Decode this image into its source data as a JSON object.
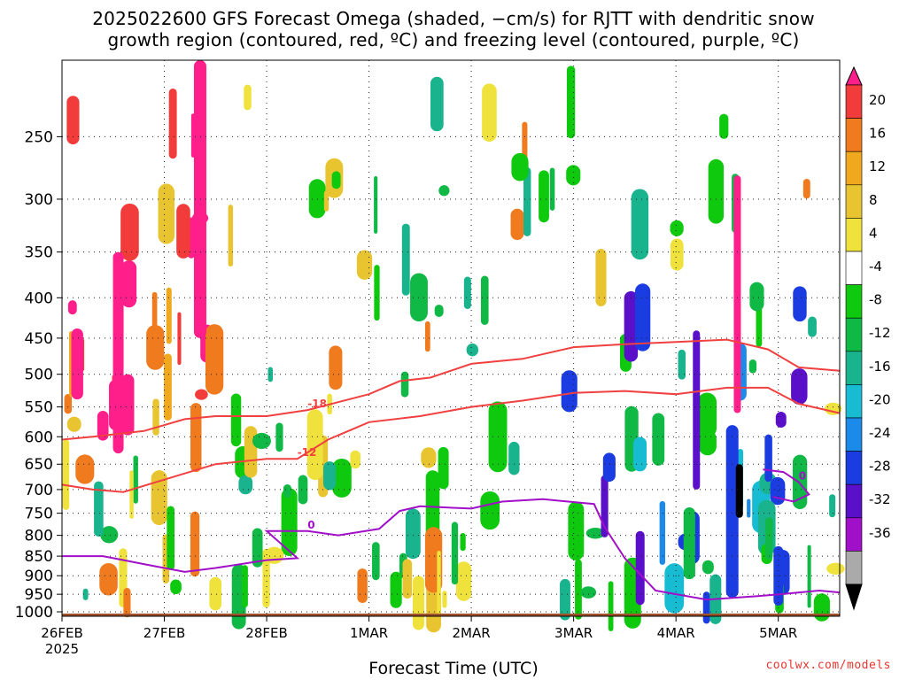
{
  "header": {
    "title_line1": "2025022600 GFS Forecast Omega (shaded, −cm/s) for RJTT with dendritic snow",
    "title_line2": "growth region (contoured, red, ºC) and freezing level (contoured, purple, ºC)"
  },
  "footer": {
    "credit": "coolwx.com/models"
  },
  "chart_data": {
    "type": "heatmap",
    "xlabel": "Forecast Time (UTC)",
    "ylabel": "",
    "x_start_label": "26FEB",
    "x_start_year": "2025",
    "x_ticks": [
      "26FEB",
      "27FEB",
      "28FEB",
      "1MAR",
      "2MAR",
      "3MAR",
      "4MAR",
      "5MAR"
    ],
    "xlim_days": [
      0,
      7.6
    ],
    "y_ticks": [
      250,
      300,
      350,
      400,
      450,
      500,
      550,
      600,
      650,
      700,
      750,
      800,
      850,
      900,
      950,
      1000
    ],
    "ylim_hpa": [
      200,
      1013
    ],
    "y_scale": "log-pressure",
    "grid": true,
    "colorbar": {
      "levels": [
        20,
        16,
        12,
        8,
        4,
        -4,
        -8,
        -12,
        -16,
        -20,
        -24,
        -28,
        -32,
        -36
      ],
      "colors": [
        "#ff1f8a",
        "#f23b3b",
        "#f07a1e",
        "#f0a81e",
        "#e8c530",
        "#f0e23c",
        "#ffffff",
        "#0ec90e",
        "#10b846",
        "#19b48e",
        "#18bcd2",
        "#1c8ae8",
        "#1a3ce0",
        "#5a10c8",
        "#a010c8",
        "#aaaaaa",
        "#000000"
      ]
    },
    "contours": [
      {
        "label": "-18",
        "color": "#f04040",
        "points": [
          [
            0,
            605
          ],
          [
            0.3,
            600
          ],
          [
            0.8,
            590
          ],
          [
            1.2,
            570
          ],
          [
            1.5,
            565
          ],
          [
            2.0,
            565
          ],
          [
            2.4,
            555
          ],
          [
            3.0,
            530
          ],
          [
            3.3,
            510
          ],
          [
            3.6,
            505
          ],
          [
            4.0,
            485
          ],
          [
            4.5,
            478
          ],
          [
            5.0,
            462
          ],
          [
            5.5,
            458
          ],
          [
            6.0,
            455
          ],
          [
            6.5,
            452
          ],
          [
            6.9,
            465
          ],
          [
            7.2,
            490
          ],
          [
            7.6,
            495
          ]
        ]
      },
      {
        "label": "-12",
        "color": "#f04040",
        "points": [
          [
            0,
            690
          ],
          [
            0.3,
            700
          ],
          [
            0.6,
            705
          ],
          [
            1.0,
            680
          ],
          [
            1.5,
            650
          ],
          [
            2.0,
            640
          ],
          [
            2.3,
            640
          ],
          [
            2.6,
            605
          ],
          [
            3.0,
            575
          ],
          [
            3.5,
            565
          ],
          [
            4.0,
            550
          ],
          [
            4.5,
            540
          ],
          [
            5.0,
            528
          ],
          [
            5.5,
            525
          ],
          [
            6.0,
            530
          ],
          [
            6.5,
            520
          ],
          [
            6.9,
            520
          ],
          [
            7.2,
            545
          ],
          [
            7.6,
            560
          ]
        ]
      },
      {
        "label": "0",
        "color": "#a20fc8",
        "points": [
          [
            0,
            850
          ],
          [
            0.4,
            850
          ],
          [
            0.8,
            870
          ],
          [
            1.2,
            890
          ],
          [
            1.5,
            880
          ],
          [
            2.0,
            860
          ],
          [
            2.3,
            855
          ],
          [
            2.0,
            790
          ],
          [
            2.4,
            790
          ],
          [
            2.7,
            800
          ],
          [
            3.1,
            785
          ],
          [
            3.3,
            745
          ],
          [
            3.5,
            735
          ],
          [
            4.0,
            740
          ],
          [
            4.3,
            725
          ],
          [
            4.7,
            720
          ],
          [
            5.2,
            730
          ],
          [
            5.3,
            780
          ],
          [
            5.5,
            855
          ],
          [
            5.8,
            940
          ],
          [
            6.3,
            965
          ],
          [
            6.8,
            955
          ],
          [
            7.1,
            948
          ],
          [
            7.4,
            940
          ],
          [
            7.6,
            945
          ]
        ]
      },
      {
        "label": "0",
        "color": "#a20fc8",
        "points": [
          [
            6.85,
            660
          ],
          [
            7.05,
            665
          ],
          [
            7.2,
            685
          ],
          [
            7.3,
            710
          ],
          [
            7.15,
            725
          ],
          [
            6.95,
            715
          ]
        ]
      }
    ]
  }
}
